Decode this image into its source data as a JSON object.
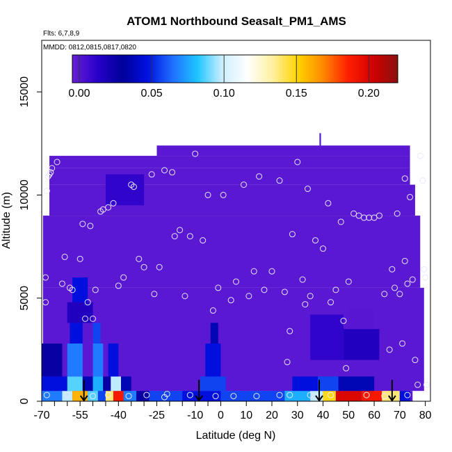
{
  "chart_data": {
    "type": "heatmap",
    "title": "ATOM1 Northbound Seasalt_PM1_AMS",
    "flights_label": "Flts: 6,7,8,9",
    "dates_label": "MMDD: 0812,0815,0817,0820",
    "xlabel": "Latitude (deg N)",
    "ylabel": "Altitude (m)",
    "xlim": [
      -70,
      82
    ],
    "ylim": [
      0,
      17500
    ],
    "xticks": [
      -70,
      -55,
      -40,
      -25,
      -10,
      0,
      10,
      20,
      30,
      40,
      50,
      60,
      70,
      80
    ],
    "xtick_labels": [
      "-70",
      "-55",
      "-40",
      "-25",
      "-10",
      "0",
      "10",
      "20",
      "30",
      "40",
      "50",
      "60",
      "70",
      "80"
    ],
    "xtick_minor": [
      -65,
      -60,
      -50,
      -45,
      -35,
      -30,
      -20,
      -15,
      -5
    ],
    "yticks": [
      0,
      5000,
      10000,
      15000
    ],
    "ytick_labels": [
      "0",
      "5000",
      "10000",
      "15000"
    ],
    "colorbar": {
      "range": [
        0.0,
        0.22
      ],
      "ticks": [
        0.0,
        0.05,
        0.1,
        0.15,
        0.2
      ],
      "tick_labels": [
        "0.00",
        "0.05",
        "0.10",
        "0.15",
        "0.20"
      ],
      "colors": [
        "#6a1fd6",
        "#2800c8",
        "#00009a",
        "#0010e0",
        "#1f6fff",
        "#1ec5ff",
        "#cfefff",
        "#ffffff",
        "#fff0a0",
        "#ffd400",
        "#ff8a00",
        "#ff2000",
        "#d20000",
        "#8a1010"
      ]
    },
    "background_value": 0.004,
    "field": [
      {
        "lat": [
          -70,
          -62
        ],
        "alt": [
          0,
          500
        ],
        "value": 0.07
      },
      {
        "lat": [
          -62,
          -58
        ],
        "alt": [
          0,
          500
        ],
        "value": 0.1
      },
      {
        "lat": [
          -58,
          -52
        ],
        "alt": [
          0,
          500
        ],
        "value": 0.16
      },
      {
        "lat": [
          -52,
          -48
        ],
        "alt": [
          0,
          500
        ],
        "value": 0.09
      },
      {
        "lat": [
          -48,
          -45
        ],
        "alt": [
          0,
          500
        ],
        "value": 0.06
      },
      {
        "lat": [
          -45,
          -42
        ],
        "alt": [
          0,
          500
        ],
        "value": 0.14
      },
      {
        "lat": [
          -42,
          -38
        ],
        "alt": [
          0,
          500
        ],
        "value": 0.19
      },
      {
        "lat": [
          -38,
          -33
        ],
        "alt": [
          0,
          500
        ],
        "value": 0.07
      },
      {
        "lat": [
          -33,
          -28
        ],
        "alt": [
          0,
          500
        ],
        "value": 0.03
      },
      {
        "lat": [
          -28,
          -15
        ],
        "alt": [
          0,
          500
        ],
        "value": 0.06
      },
      {
        "lat": [
          -15,
          0
        ],
        "alt": [
          0,
          500
        ],
        "value": 0.05
      },
      {
        "lat": [
          0,
          25
        ],
        "alt": [
          0,
          500
        ],
        "value": 0.06
      },
      {
        "lat": [
          25,
          35
        ],
        "alt": [
          0,
          500
        ],
        "value": 0.08
      },
      {
        "lat": [
          35,
          40
        ],
        "alt": [
          0,
          500
        ],
        "value": 0.1
      },
      {
        "lat": [
          40,
          45
        ],
        "alt": [
          0,
          500
        ],
        "value": 0.15
      },
      {
        "lat": [
          45,
          55
        ],
        "alt": [
          0,
          500
        ],
        "value": 0.2
      },
      {
        "lat": [
          55,
          63
        ],
        "alt": [
          0,
          500
        ],
        "value": 0.19
      },
      {
        "lat": [
          63,
          70
        ],
        "alt": [
          0,
          500
        ],
        "value": 0.14
      },
      {
        "lat": [
          70,
          74
        ],
        "alt": [
          0,
          500
        ],
        "value": 0.05
      },
      {
        "lat": [
          -70,
          -60
        ],
        "alt": [
          500,
          1200
        ],
        "value": 0.05
      },
      {
        "lat": [
          -60,
          -54
        ],
        "alt": [
          500,
          1200
        ],
        "value": 0.09
      },
      {
        "lat": [
          -54,
          -50
        ],
        "alt": [
          500,
          1200
        ],
        "value": 0.04
      },
      {
        "lat": [
          -50,
          -46
        ],
        "alt": [
          500,
          1200
        ],
        "value": 0.08
      },
      {
        "lat": [
          -46,
          -43
        ],
        "alt": [
          500,
          1200
        ],
        "value": 0.03
      },
      {
        "lat": [
          -43,
          -39
        ],
        "alt": [
          500,
          1200
        ],
        "value": 0.1
      },
      {
        "lat": [
          -39,
          -35
        ],
        "alt": [
          500,
          1200
        ],
        "value": 0.04
      },
      {
        "lat": [
          -8,
          2
        ],
        "alt": [
          500,
          1200
        ],
        "value": 0.06
      },
      {
        "lat": [
          28,
          38
        ],
        "alt": [
          500,
          1200
        ],
        "value": 0.05
      },
      {
        "lat": [
          38,
          46
        ],
        "alt": [
          500,
          1200
        ],
        "value": 0.06
      },
      {
        "lat": [
          46,
          60
        ],
        "alt": [
          500,
          1200
        ],
        "value": 0.04
      },
      {
        "lat": [
          -70,
          -62
        ],
        "alt": [
          1200,
          2800
        ],
        "value": 0.03
      },
      {
        "lat": [
          -60,
          -54
        ],
        "alt": [
          1200,
          2800
        ],
        "value": 0.07
      },
      {
        "lat": [
          -50,
          -46
        ],
        "alt": [
          1200,
          2800
        ],
        "value": 0.07
      },
      {
        "lat": [
          -44,
          -40
        ],
        "alt": [
          1200,
          2800
        ],
        "value": 0.05
      },
      {
        "lat": [
          -6,
          0
        ],
        "alt": [
          1200,
          2800
        ],
        "value": 0.05
      },
      {
        "lat": [
          -59,
          -54
        ],
        "alt": [
          2800,
          3800
        ],
        "value": 0.05
      },
      {
        "lat": [
          -50,
          -47
        ],
        "alt": [
          2800,
          3800
        ],
        "value": 0.06
      },
      {
        "lat": [
          -4,
          -1
        ],
        "alt": [
          2800,
          3800
        ],
        "value": 0.04
      },
      {
        "lat": [
          -58,
          -52
        ],
        "alt": [
          4800,
          6000
        ],
        "value": 0.05
      },
      {
        "lat": [
          -60,
          -50
        ],
        "alt": [
          3800,
          4800
        ],
        "value": 0.02
      },
      {
        "lat": [
          35,
          48
        ],
        "alt": [
          2000,
          4200
        ],
        "value": 0.015
      },
      {
        "lat": [
          48,
          62
        ],
        "alt": [
          2000,
          3500
        ],
        "value": 0.02
      },
      {
        "lat": [
          50,
          60
        ],
        "alt": [
          3500,
          4500
        ],
        "value": 0.005
      },
      {
        "lat": [
          -45,
          -30
        ],
        "alt": [
          9500,
          11000
        ],
        "value": 0.015
      }
    ],
    "data_extent": [
      {
        "lat": [
          -70,
          82
        ],
        "alt": [
          0,
          17500
        ],
        "value": null
      },
      {
        "lat": [
          -69.5,
          79.5
        ],
        "alt": [
          500,
          5500
        ]
      },
      {
        "lat": [
          -69.5,
          75
        ],
        "alt": [
          0,
          500
        ]
      },
      {
        "lat": [
          -69.5,
          78
        ],
        "alt": [
          5500,
          9000
        ]
      },
      {
        "lat": [
          -67,
          76
        ],
        "alt": [
          9000,
          10500
        ]
      },
      {
        "lat": [
          -67,
          74
        ],
        "alt": [
          10500,
          11300
        ]
      },
      {
        "lat": [
          -67,
          74
        ],
        "alt": [
          11300,
          11900
        ]
      },
      {
        "lat": [
          -25,
          74
        ],
        "alt": [
          11900,
          12400
        ]
      },
      {
        "lat": [
          38.6,
          39.2
        ],
        "alt": [
          12400,
          13000
        ]
      }
    ],
    "flight_points": [
      {
        "lat": -68.5,
        "alt": 4800
      },
      {
        "lat": -68.5,
        "alt": 6000
      },
      {
        "lat": -68,
        "alt": 10200
      },
      {
        "lat": -67.5,
        "alt": 10900
      },
      {
        "lat": -67,
        "alt": 11000
      },
      {
        "lat": -66.5,
        "alt": 11100
      },
      {
        "lat": -66,
        "alt": 11300
      },
      {
        "lat": -64,
        "alt": 11600
      },
      {
        "lat": -62,
        "alt": 5700
      },
      {
        "lat": -61,
        "alt": 7000
      },
      {
        "lat": -59,
        "alt": 5500
      },
      {
        "lat": -58,
        "alt": 5400
      },
      {
        "lat": -55,
        "alt": 6900
      },
      {
        "lat": -54,
        "alt": 8600
      },
      {
        "lat": -53,
        "alt": 4000
      },
      {
        "lat": -52,
        "alt": 4800
      },
      {
        "lat": -51,
        "alt": 8500
      },
      {
        "lat": -50,
        "alt": 4000
      },
      {
        "lat": -49,
        "alt": 5400
      },
      {
        "lat": -47,
        "alt": 9200
      },
      {
        "lat": -46,
        "alt": 9300
      },
      {
        "lat": -44,
        "alt": 9400
      },
      {
        "lat": -42,
        "alt": 9600
      },
      {
        "lat": -40,
        "alt": 5600
      },
      {
        "lat": -38,
        "alt": 6000
      },
      {
        "lat": -35,
        "alt": 10500
      },
      {
        "lat": -34,
        "alt": 10400
      },
      {
        "lat": -32,
        "alt": 6900
      },
      {
        "lat": -30,
        "alt": 6500
      },
      {
        "lat": -27,
        "alt": 11000
      },
      {
        "lat": -26,
        "alt": 5200
      },
      {
        "lat": -24,
        "alt": 6500
      },
      {
        "lat": -22,
        "alt": 11200
      },
      {
        "lat": -19,
        "alt": 11100
      },
      {
        "lat": -18,
        "alt": 8000
      },
      {
        "lat": -16,
        "alt": 8300
      },
      {
        "lat": -14,
        "alt": 5100
      },
      {
        "lat": -12,
        "alt": 8000
      },
      {
        "lat": -10,
        "alt": 12000
      },
      {
        "lat": -7,
        "alt": 7800
      },
      {
        "lat": -5,
        "alt": 10000
      },
      {
        "lat": -3,
        "alt": 4400
      },
      {
        "lat": -1,
        "alt": 5500
      },
      {
        "lat": 1,
        "alt": 10000
      },
      {
        "lat": 4,
        "alt": 4900
      },
      {
        "lat": 6,
        "alt": 5800
      },
      {
        "lat": 9,
        "alt": 10500
      },
      {
        "lat": 11,
        "alt": 5100
      },
      {
        "lat": 13,
        "alt": 6300
      },
      {
        "lat": 15,
        "alt": 10900
      },
      {
        "lat": 17,
        "alt": 5400
      },
      {
        "lat": 20,
        "alt": 6300
      },
      {
        "lat": 23,
        "alt": 10700
      },
      {
        "lat": 25,
        "alt": 5300
      },
      {
        "lat": 26,
        "alt": 1900
      },
      {
        "lat": 27,
        "alt": 3400
      },
      {
        "lat": 28,
        "alt": 8100
      },
      {
        "lat": 30,
        "alt": 11600
      },
      {
        "lat": 32,
        "alt": 5900
      },
      {
        "lat": 33,
        "alt": 4700
      },
      {
        "lat": 34,
        "alt": 10300
      },
      {
        "lat": 35,
        "alt": 5100
      },
      {
        "lat": 37,
        "alt": 7800
      },
      {
        "lat": 40,
        "alt": 7400
      },
      {
        "lat": 42,
        "alt": 9600
      },
      {
        "lat": 43,
        "alt": 4800
      },
      {
        "lat": 45,
        "alt": 5400
      },
      {
        "lat": 47,
        "alt": 8700
      },
      {
        "lat": 48,
        "alt": 3900
      },
      {
        "lat": 49,
        "alt": 1600
      },
      {
        "lat": 50,
        "alt": 5800
      },
      {
        "lat": 52,
        "alt": 9100
      },
      {
        "lat": 54,
        "alt": 9000
      },
      {
        "lat": 56,
        "alt": 8900
      },
      {
        "lat": 58,
        "alt": 8900
      },
      {
        "lat": 60,
        "alt": 8900
      },
      {
        "lat": 62,
        "alt": 9000
      },
      {
        "lat": 64,
        "alt": 5200
      },
      {
        "lat": 66,
        "alt": 2500
      },
      {
        "lat": 67,
        "alt": 6400
      },
      {
        "lat": 68,
        "alt": 5500
      },
      {
        "lat": 69,
        "alt": 9100
      },
      {
        "lat": 70,
        "alt": 5200
      },
      {
        "lat": 71,
        "alt": 2800
      },
      {
        "lat": 72,
        "alt": 6800
      },
      {
        "lat": 72,
        "alt": 10800
      },
      {
        "lat": 73,
        "alt": 5700
      },
      {
        "lat": 74,
        "alt": 9900
      },
      {
        "lat": 75,
        "alt": 5900
      },
      {
        "lat": 76,
        "alt": 2000
      },
      {
        "lat": 77,
        "alt": 800
      },
      {
        "lat": 78,
        "alt": 11900
      },
      {
        "lat": 79,
        "alt": 10700
      },
      {
        "lat": 79.5,
        "alt": 6400
      },
      {
        "lat": 80,
        "alt": 6000
      },
      {
        "lat": 80.5,
        "alt": 800
      },
      {
        "lat": -68,
        "alt": 300
      },
      {
        "lat": -60,
        "alt": 300
      },
      {
        "lat": -50,
        "alt": 250
      },
      {
        "lat": -44,
        "alt": 300
      },
      {
        "lat": -36,
        "alt": 250
      },
      {
        "lat": -29,
        "alt": 300
      },
      {
        "lat": -22,
        "alt": 200
      },
      {
        "lat": -21,
        "alt": 350
      },
      {
        "lat": -12,
        "alt": 300
      },
      {
        "lat": -2,
        "alt": 250
      },
      {
        "lat": 5,
        "alt": 250
      },
      {
        "lat": 14,
        "alt": 250
      },
      {
        "lat": 23,
        "alt": 300
      },
      {
        "lat": 27,
        "alt": 300
      },
      {
        "lat": 35,
        "alt": 300
      },
      {
        "lat": 37,
        "alt": 250
      },
      {
        "lat": 43,
        "alt": 300
      },
      {
        "lat": 57,
        "alt": 300
      },
      {
        "lat": 64,
        "alt": 250
      },
      {
        "lat": 73,
        "alt": 300
      }
    ],
    "arrows": [
      {
        "lat": -53.5,
        "alt": 700
      },
      {
        "lat": -8.5,
        "alt": 700
      },
      {
        "lat": 38.5,
        "alt": 700
      },
      {
        "lat": 67,
        "alt": 700
      }
    ]
  }
}
